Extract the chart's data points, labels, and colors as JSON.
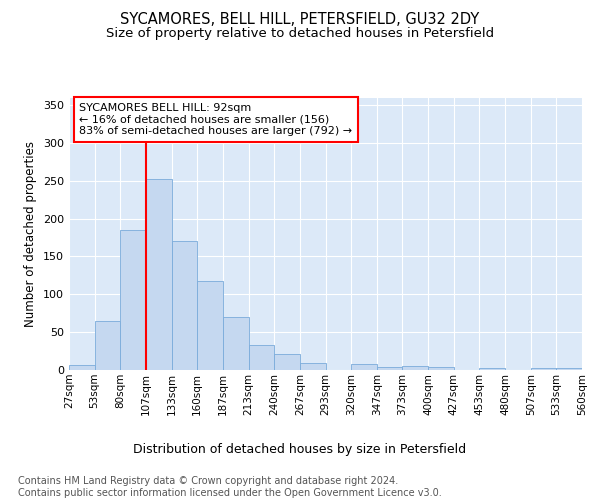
{
  "title": "SYCAMORES, BELL HILL, PETERSFIELD, GU32 2DY",
  "subtitle": "Size of property relative to detached houses in Petersfield",
  "xlabel": "Distribution of detached houses by size in Petersfield",
  "ylabel": "Number of detached properties",
  "bar_values": [
    7,
    65,
    185,
    252,
    170,
    117,
    70,
    33,
    21,
    9,
    0,
    8,
    4,
    5,
    4,
    0,
    2,
    0,
    2,
    2
  ],
  "bin_labels": [
    "27sqm",
    "53sqm",
    "80sqm",
    "107sqm",
    "133sqm",
    "160sqm",
    "187sqm",
    "213sqm",
    "240sqm",
    "267sqm",
    "293sqm",
    "320sqm",
    "347sqm",
    "373sqm",
    "400sqm",
    "427sqm",
    "453sqm",
    "480sqm",
    "507sqm",
    "533sqm",
    "560sqm"
  ],
  "bar_color": "#c5d8f0",
  "bar_edge_color": "#7aabdb",
  "vline_color": "red",
  "vline_x": 3.0,
  "annotation_text": "SYCAMORES BELL HILL: 92sqm\n← 16% of detached houses are smaller (156)\n83% of semi-detached houses are larger (792) →",
  "annotation_box_facecolor": "white",
  "annotation_box_edgecolor": "red",
  "ylim": [
    0,
    360
  ],
  "yticks": [
    0,
    50,
    100,
    150,
    200,
    250,
    300,
    350
  ],
  "bg_color": "#dce9f8",
  "grid_color": "white",
  "footer_text": "Contains HM Land Registry data © Crown copyright and database right 2024.\nContains public sector information licensed under the Open Government Licence v3.0.",
  "title_fontsize": 10.5,
  "subtitle_fontsize": 9.5,
  "xlabel_fontsize": 9,
  "ylabel_fontsize": 8.5,
  "tick_label_fontsize": 7.5,
  "ytick_fontsize": 8,
  "annotation_fontsize": 8,
  "footer_fontsize": 7
}
